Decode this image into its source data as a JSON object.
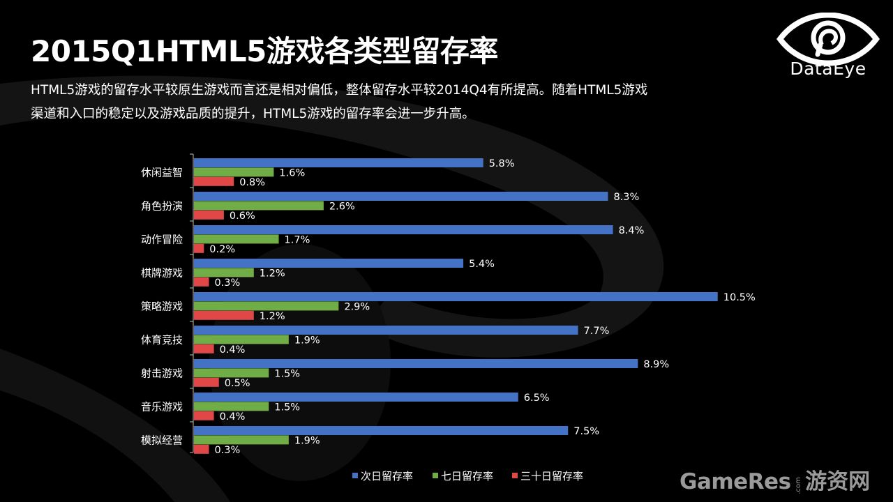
{
  "header": {
    "title": "2015Q1HTML5游戏各类型留存率",
    "subtitle_line1": "HTML5游戏的留存水平较原生游戏而言还是相对偏低，整体留存水平较2014Q4有所提高。随着HTML5游戏",
    "subtitle_line2": "渠道和入口的稳定以及游戏品质的提升，HTML5游戏的留存率会进一步升高。"
  },
  "brand": {
    "logo_icon": "dataeye-eye-logo-icon",
    "name": "DataEye"
  },
  "watermark": {
    "main": "GameRes",
    "com": ".com",
    "cn": "游资网"
  },
  "colors": {
    "background": "#000000",
    "series_1": "#4472C4",
    "series_2": "#70AD47",
    "series_3": "#E04848",
    "text": "#ffffff"
  },
  "chart_data": {
    "type": "bar",
    "orientation": "horizontal",
    "categories": [
      "休闲益智",
      "角色扮演",
      "动作冒险",
      "棋牌游戏",
      "策略游戏",
      "体育竞技",
      "射击游戏",
      "音乐游戏",
      "模拟经营"
    ],
    "series": [
      {
        "name": "次日留存率",
        "values": [
          5.8,
          8.3,
          8.4,
          5.4,
          10.5,
          7.7,
          8.9,
          6.5,
          7.5
        ]
      },
      {
        "name": "七日留存率",
        "values": [
          1.6,
          2.6,
          1.7,
          1.2,
          2.9,
          1.9,
          1.5,
          1.5,
          1.9
        ]
      },
      {
        "name": "三十日留存率",
        "values": [
          0.8,
          0.6,
          0.2,
          0.3,
          1.2,
          0.4,
          0.5,
          0.4,
          0.3
        ]
      }
    ],
    "value_suffix": "%",
    "xlim": [
      0,
      10.5
    ],
    "legend_position": "bottom",
    "grid": false
  }
}
